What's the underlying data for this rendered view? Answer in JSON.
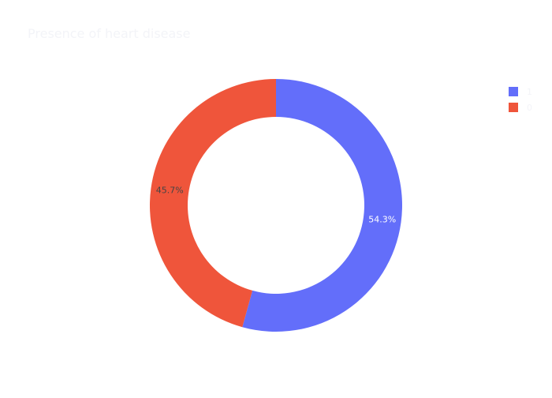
{
  "chart_data": {
    "type": "pie",
    "title": "Presence of heart disease",
    "hole": 0.7,
    "slices": [
      {
        "label": "1",
        "percent": 54.3,
        "percent_label": "54.3%",
        "color": "#636efa",
        "text_color": "#ffffff"
      },
      {
        "label": "0",
        "percent": 45.7,
        "percent_label": "45.7%",
        "color": "#ef553b",
        "text_color": "#444444"
      }
    ],
    "legend_position": "top-right"
  }
}
